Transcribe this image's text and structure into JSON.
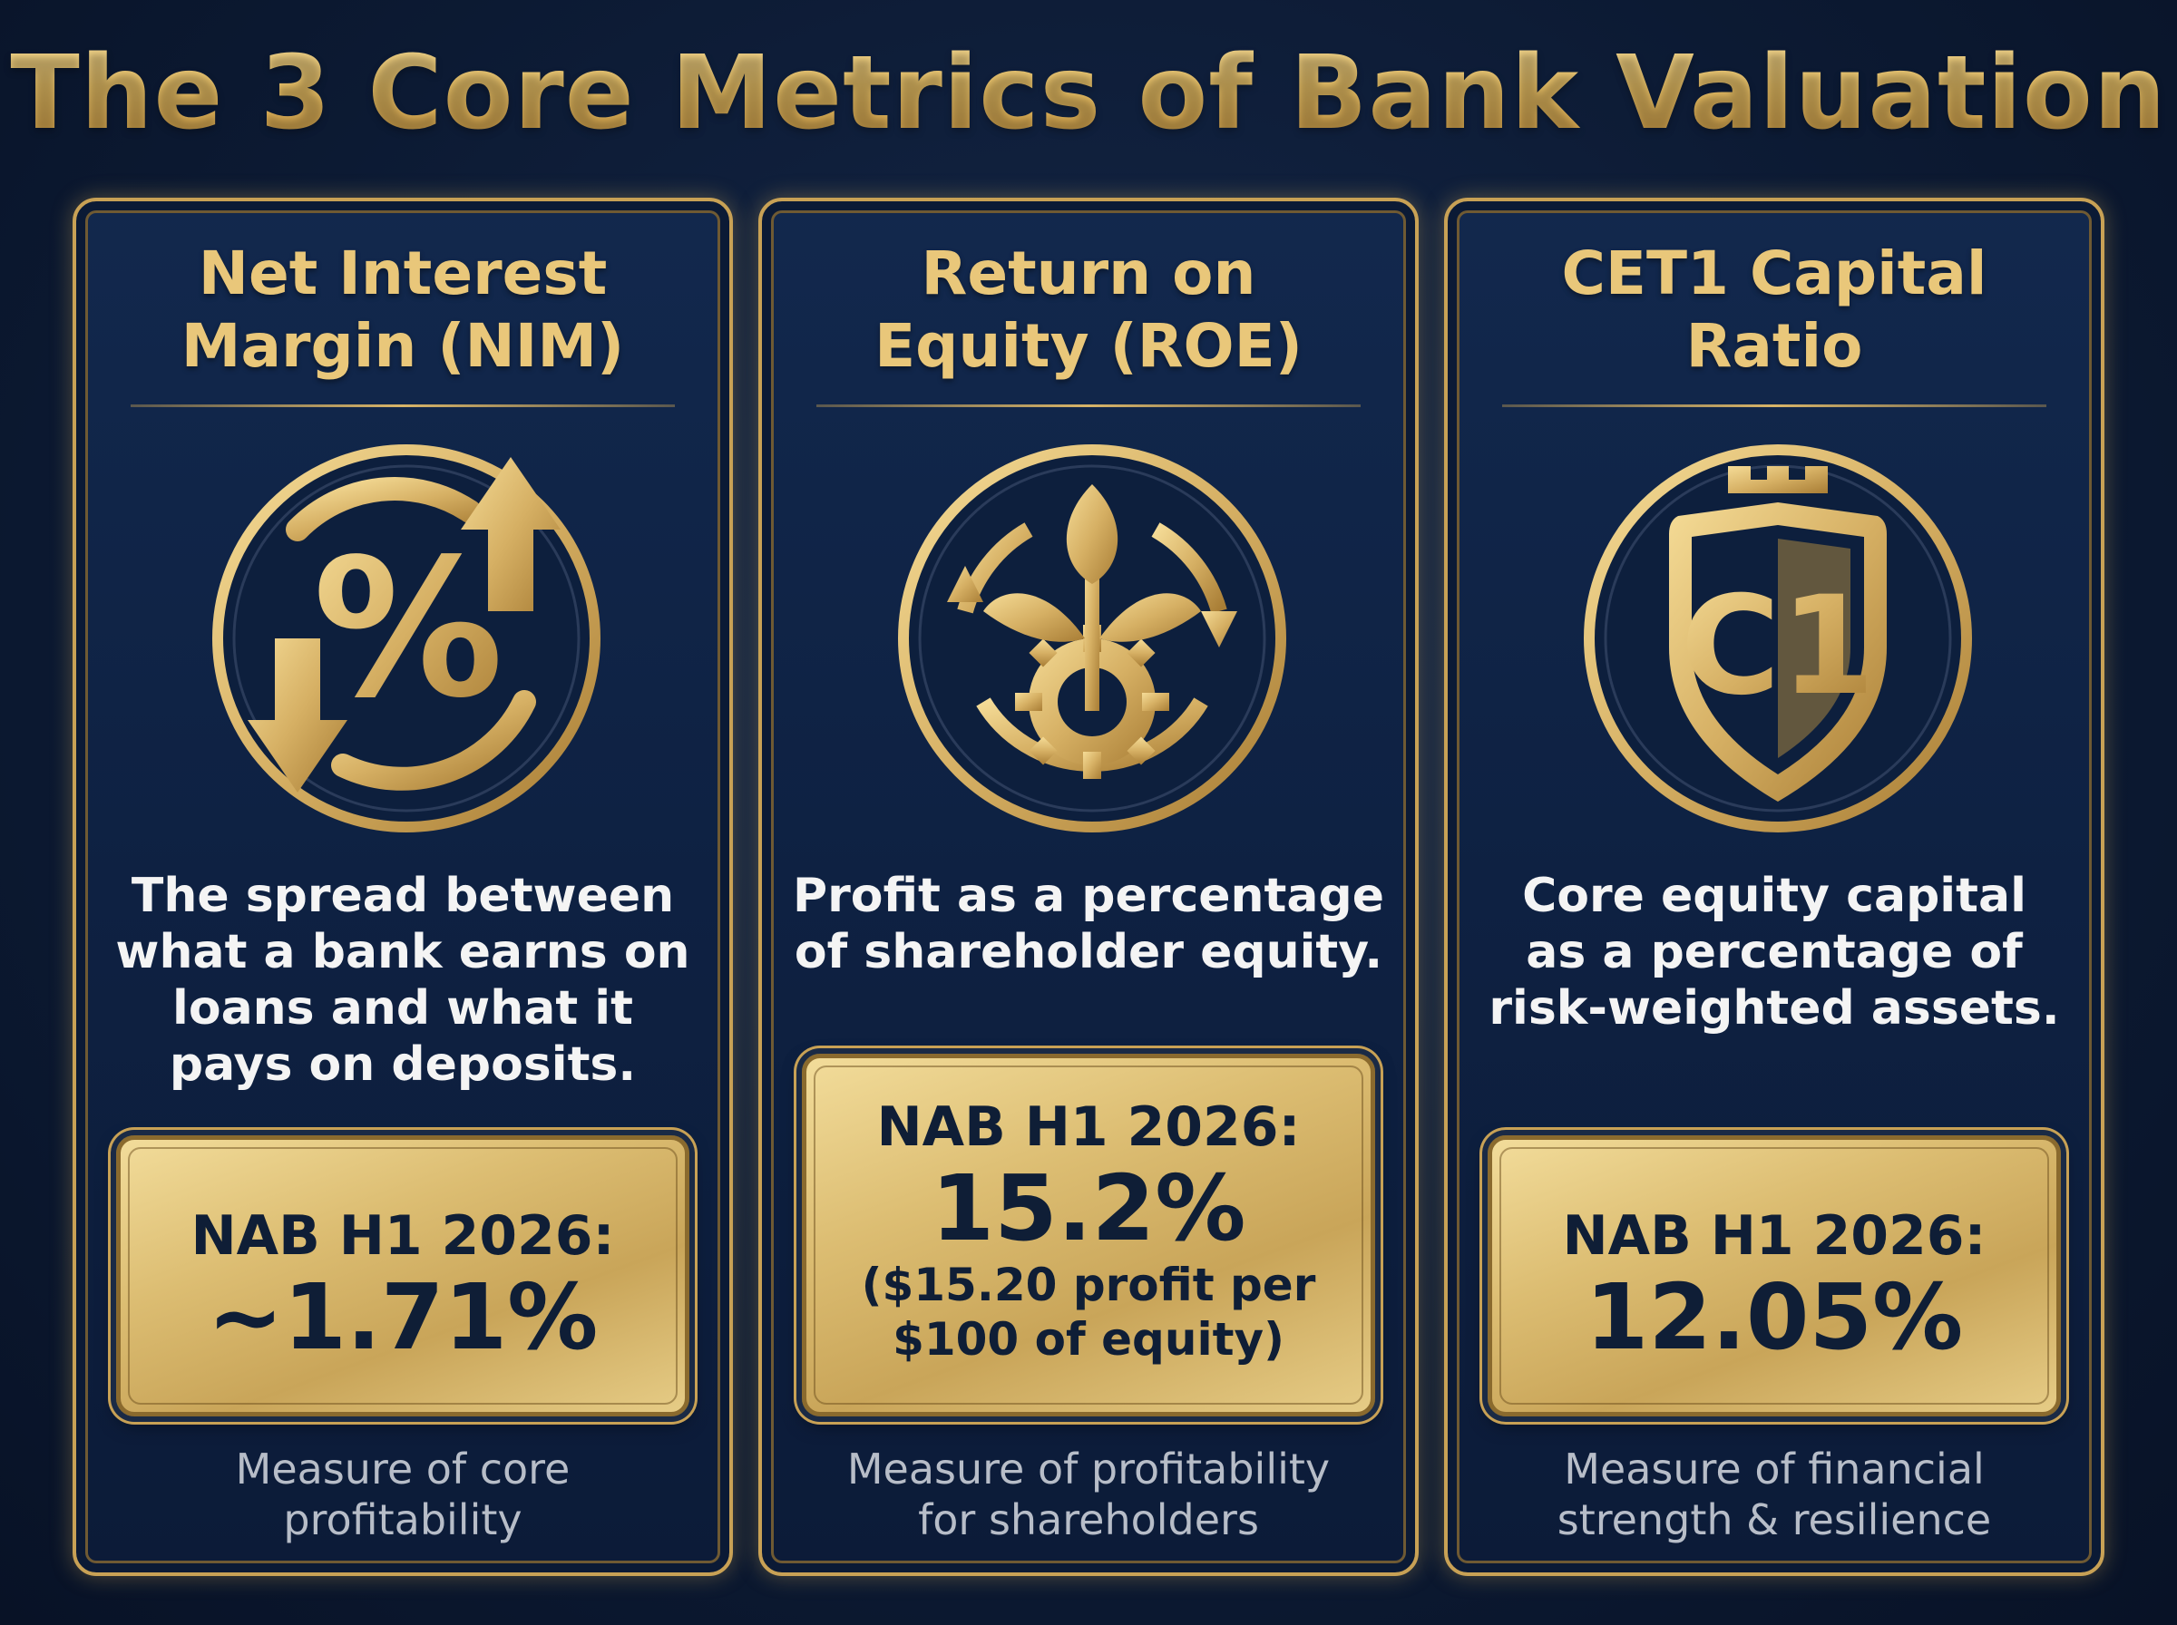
{
  "title": "The 3 Core Metrics of Bank Valuation",
  "colors": {
    "gold": "#e9c77a",
    "navy": "#0e2142",
    "box_gold": "#dcbd72",
    "text_dark": "#0f1e36"
  },
  "cards": [
    {
      "title_lines": [
        "Net Interest",
        "Margin (NIM)"
      ],
      "icon": "percent-arrows-icon",
      "desc_lines": [
        "The spread between",
        "what a bank earns on",
        "loans and what it",
        "pays on deposits."
      ],
      "label": "NAB H1 2026:",
      "value": "~1.71%",
      "note_lines": [],
      "footer_lines": [
        "Measure of core",
        "profitability"
      ]
    },
    {
      "title_lines": [
        "Return on",
        "Equity (ROE)"
      ],
      "icon": "plant-gear-icon",
      "desc_lines": [
        "Profit as a percentage",
        "of shareholder equity."
      ],
      "label": "NAB H1 2026:",
      "value": "15.2%",
      "note_lines": [
        "($15.20 profit per",
        "$100 of equity)"
      ],
      "footer_lines": [
        "Measure of profitability",
        "for shareholders"
      ]
    },
    {
      "title_lines": [
        "CET1 Capital",
        "Ratio"
      ],
      "icon": "shield-castle-icon",
      "icon_text": "C1",
      "desc_lines": [
        "Core equity capital",
        "as a percentage of",
        "risk-weighted assets."
      ],
      "label": "NAB H1 2026:",
      "value": "12.05%",
      "note_lines": [],
      "footer_lines": [
        "Measure of financial",
        "strength & resilience"
      ]
    }
  ]
}
